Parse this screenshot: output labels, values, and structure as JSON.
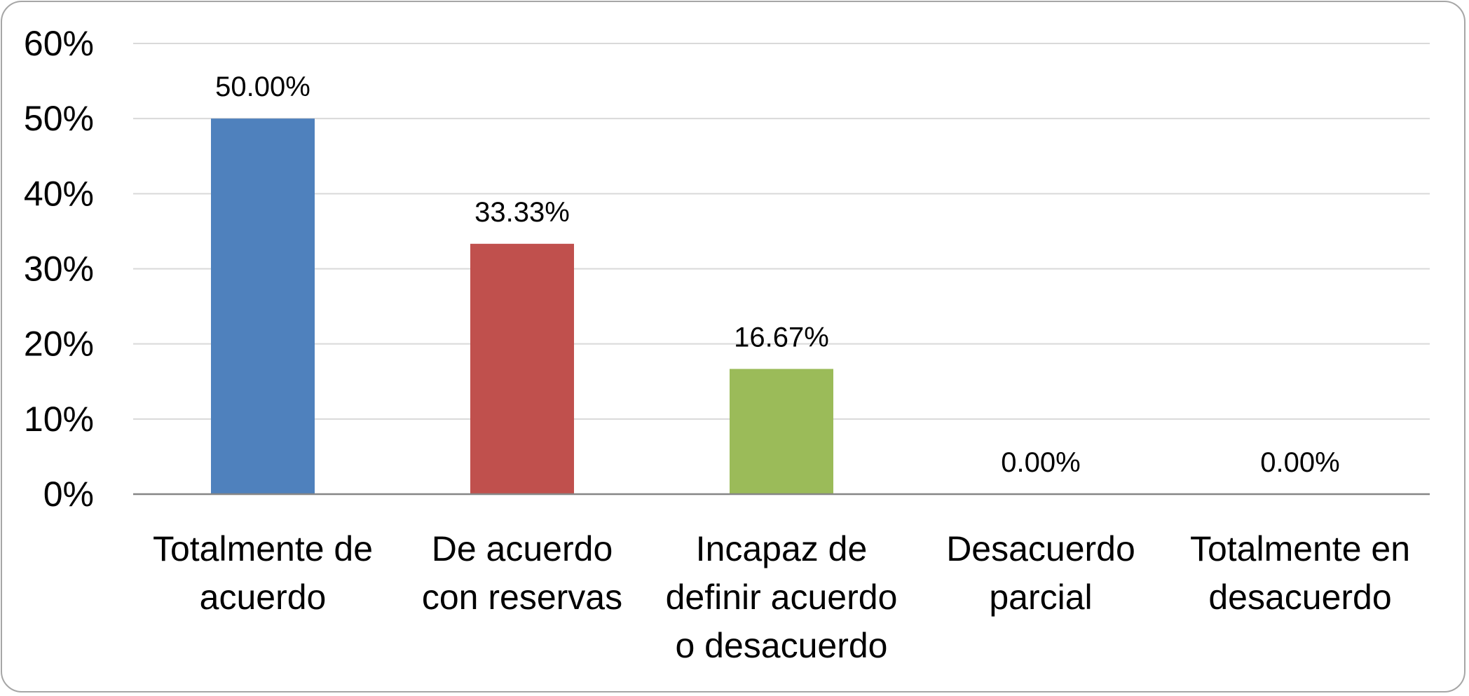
{
  "chart_data": {
    "type": "bar",
    "title": "",
    "xlabel": "",
    "ylabel": "",
    "categories": [
      [
        "Totalmente de",
        "acuerdo"
      ],
      [
        "De acuerdo",
        "con reservas"
      ],
      [
        "Incapaz de",
        "definir acuerdo",
        "o desacuerdo"
      ],
      [
        "Desacuerdo",
        "parcial"
      ],
      [
        "Totalmente en",
        "desacuerdo"
      ]
    ],
    "values": [
      50.0,
      33.33,
      16.67,
      0.0,
      0.0
    ],
    "data_labels": [
      "50.00%",
      "33.33%",
      "16.67%",
      "0.00%",
      "0.00%"
    ],
    "bar_colors": [
      "#4f81bd",
      "#c0504d",
      "#9bbb59",
      "#8064a2",
      "#4bacc6"
    ],
    "ylim": [
      0,
      60
    ],
    "y_ticks": [
      {
        "value": 0,
        "label": "0%"
      },
      {
        "value": 10,
        "label": "10%"
      },
      {
        "value": 20,
        "label": "20%"
      },
      {
        "value": 30,
        "label": "30%"
      },
      {
        "value": 40,
        "label": "40%"
      },
      {
        "value": 50,
        "label": "50%"
      },
      {
        "value": 60,
        "label": "60%"
      }
    ],
    "grid": true,
    "legend": "none",
    "colors": {
      "grid": "#d9d9d9",
      "axis": "#868686",
      "border": "#a6a6a6"
    }
  }
}
